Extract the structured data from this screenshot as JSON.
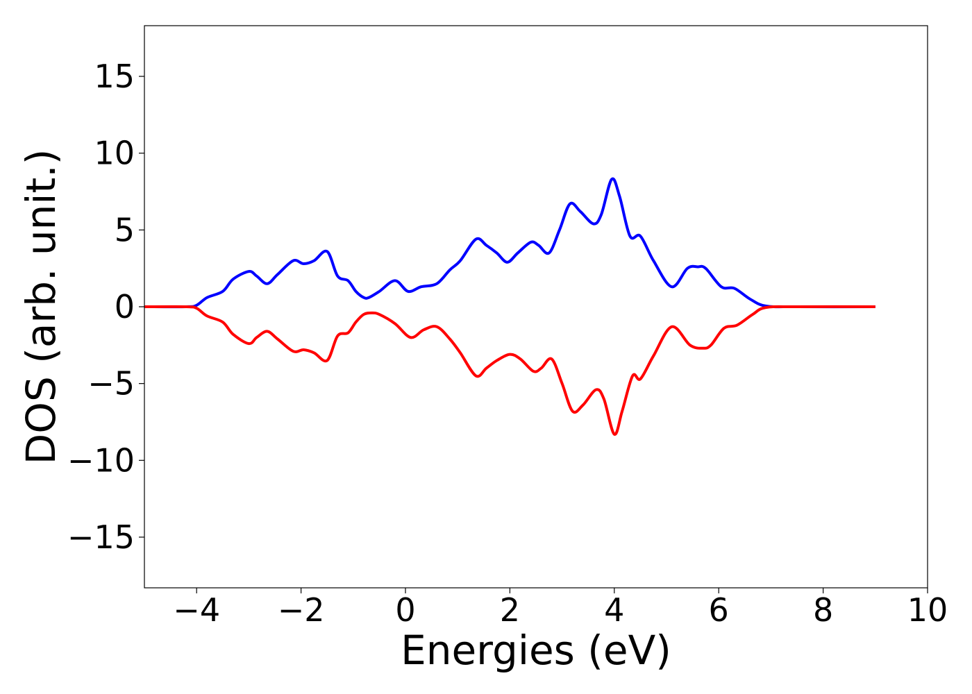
{
  "chart_data": {
    "type": "line",
    "title": "",
    "xlabel": "Energies (eV)",
    "ylabel": "DOS (arb. unit.)",
    "xlim": [
      -5,
      10
    ],
    "ylim": [
      -18.3,
      18.3
    ],
    "x_ticks": [
      -4,
      -2,
      0,
      2,
      4,
      6,
      8,
      10
    ],
    "x_tick_labels": [
      "−4",
      "−2",
      "0",
      "2",
      "4",
      "6",
      "8",
      "10"
    ],
    "y_ticks": [
      -15,
      -10,
      -5,
      0,
      5,
      10,
      15
    ],
    "y_tick_labels": [
      "−15",
      "−10",
      "−5",
      "0",
      "5",
      "10",
      "15"
    ],
    "grid": false,
    "legend": "none",
    "series": [
      {
        "color": "#0000ff",
        "x": [
          -5,
          -4.2,
          -4,
          -3.8,
          -3.5,
          -3.3,
          -3.0,
          -2.85,
          -2.65,
          -2.45,
          -2.15,
          -1.95,
          -1.75,
          -1.5,
          -1.3,
          -1.1,
          -0.95,
          -0.8,
          -0.7,
          -0.5,
          -0.2,
          0.05,
          0.3,
          0.6,
          0.85,
          1.05,
          1.35,
          1.55,
          1.75,
          1.95,
          2.15,
          2.4,
          2.55,
          2.75,
          2.95,
          3.15,
          3.35,
          3.6,
          3.75,
          3.95,
          4.1,
          4.3,
          4.5,
          4.75,
          5.1,
          5.4,
          5.6,
          5.75,
          6.05,
          6.3,
          6.6,
          6.9,
          7.5,
          9.0
        ],
        "y": [
          0,
          0,
          0.1,
          0.6,
          1.0,
          1.8,
          2.3,
          2.0,
          1.5,
          2.1,
          3.0,
          2.8,
          3.0,
          3.6,
          2.0,
          1.7,
          1.0,
          0.6,
          0.6,
          1.0,
          1.7,
          1.0,
          1.3,
          1.5,
          2.4,
          3.0,
          4.4,
          4.0,
          3.5,
          2.9,
          3.5,
          4.2,
          4.0,
          3.5,
          5.0,
          6.7,
          6.2,
          5.4,
          6.0,
          8.3,
          7.2,
          4.6,
          4.6,
          3.0,
          1.3,
          2.5,
          2.6,
          2.5,
          1.3,
          1.2,
          0.5,
          0.05,
          0,
          0
        ]
      },
      {
        "color": "#ff0000",
        "x": [
          -5,
          -4.2,
          -4,
          -3.8,
          -3.5,
          -3.3,
          -3.0,
          -2.85,
          -2.65,
          -2.45,
          -2.15,
          -1.95,
          -1.75,
          -1.5,
          -1.3,
          -1.1,
          -0.95,
          -0.8,
          -0.65,
          -0.5,
          -0.2,
          0.1,
          0.35,
          0.6,
          0.85,
          1.05,
          1.35,
          1.55,
          1.75,
          2.0,
          2.2,
          2.45,
          2.6,
          2.8,
          3.0,
          3.2,
          3.4,
          3.65,
          3.8,
          4.0,
          4.15,
          4.35,
          4.5,
          4.75,
          5.1,
          5.45,
          5.7,
          5.85,
          6.1,
          6.35,
          6.65,
          6.9,
          7.5,
          9.0
        ],
        "y": [
          0,
          0,
          -0.1,
          -0.6,
          -1.0,
          -1.8,
          -2.4,
          -2.0,
          -1.6,
          -2.1,
          -2.9,
          -2.8,
          -3.0,
          -3.5,
          -1.9,
          -1.7,
          -1.0,
          -0.5,
          -0.4,
          -0.5,
          -1.1,
          -2.0,
          -1.5,
          -1.3,
          -2.1,
          -3.0,
          -4.5,
          -4.0,
          -3.5,
          -3.1,
          -3.4,
          -4.2,
          -4.0,
          -3.4,
          -5.0,
          -6.8,
          -6.4,
          -5.4,
          -6.0,
          -8.3,
          -6.8,
          -4.5,
          -4.7,
          -3.2,
          -1.3,
          -2.5,
          -2.7,
          -2.5,
          -1.4,
          -1.2,
          -0.5,
          -0.05,
          0,
          0
        ]
      }
    ]
  }
}
